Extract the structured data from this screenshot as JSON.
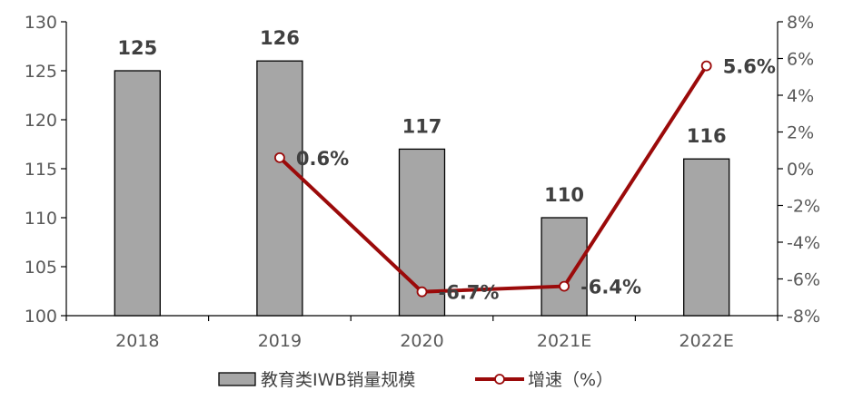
{
  "chart_data": {
    "type": "bar",
    "categories": [
      "2018",
      "2019",
      "2020",
      "2021E",
      "2022E"
    ],
    "series": [
      {
        "name": "教育类IWB销量规模",
        "type": "bar",
        "axis": "left",
        "values": [
          125,
          126,
          117,
          110,
          116
        ],
        "labels": [
          "125",
          "126",
          "117",
          "110",
          "116"
        ],
        "color": "#a6a6a6"
      },
      {
        "name": "增速（%）",
        "type": "line",
        "axis": "right",
        "values": [
          null,
          0.6,
          -6.7,
          -6.4,
          5.6
        ],
        "labels": [
          "",
          "0.6%",
          "-6.7%",
          "-6.4%",
          "5.6%"
        ],
        "color": "#9b0a0a"
      }
    ],
    "y_left": {
      "min": 100,
      "max": 130,
      "step": 5,
      "tick_labels": [
        "100",
        "105",
        "110",
        "115",
        "120",
        "125",
        "130"
      ]
    },
    "y_right": {
      "min": -8,
      "max": 8,
      "step": 2,
      "tick_labels": [
        "-8%",
        "-6%",
        "-4%",
        "-2%",
        "0%",
        "2%",
        "4%",
        "6%",
        "8%"
      ]
    },
    "legend": {
      "position": "bottom",
      "entries": [
        "教育类IWB销量规模",
        "增速（%）"
      ]
    },
    "grid": false
  }
}
